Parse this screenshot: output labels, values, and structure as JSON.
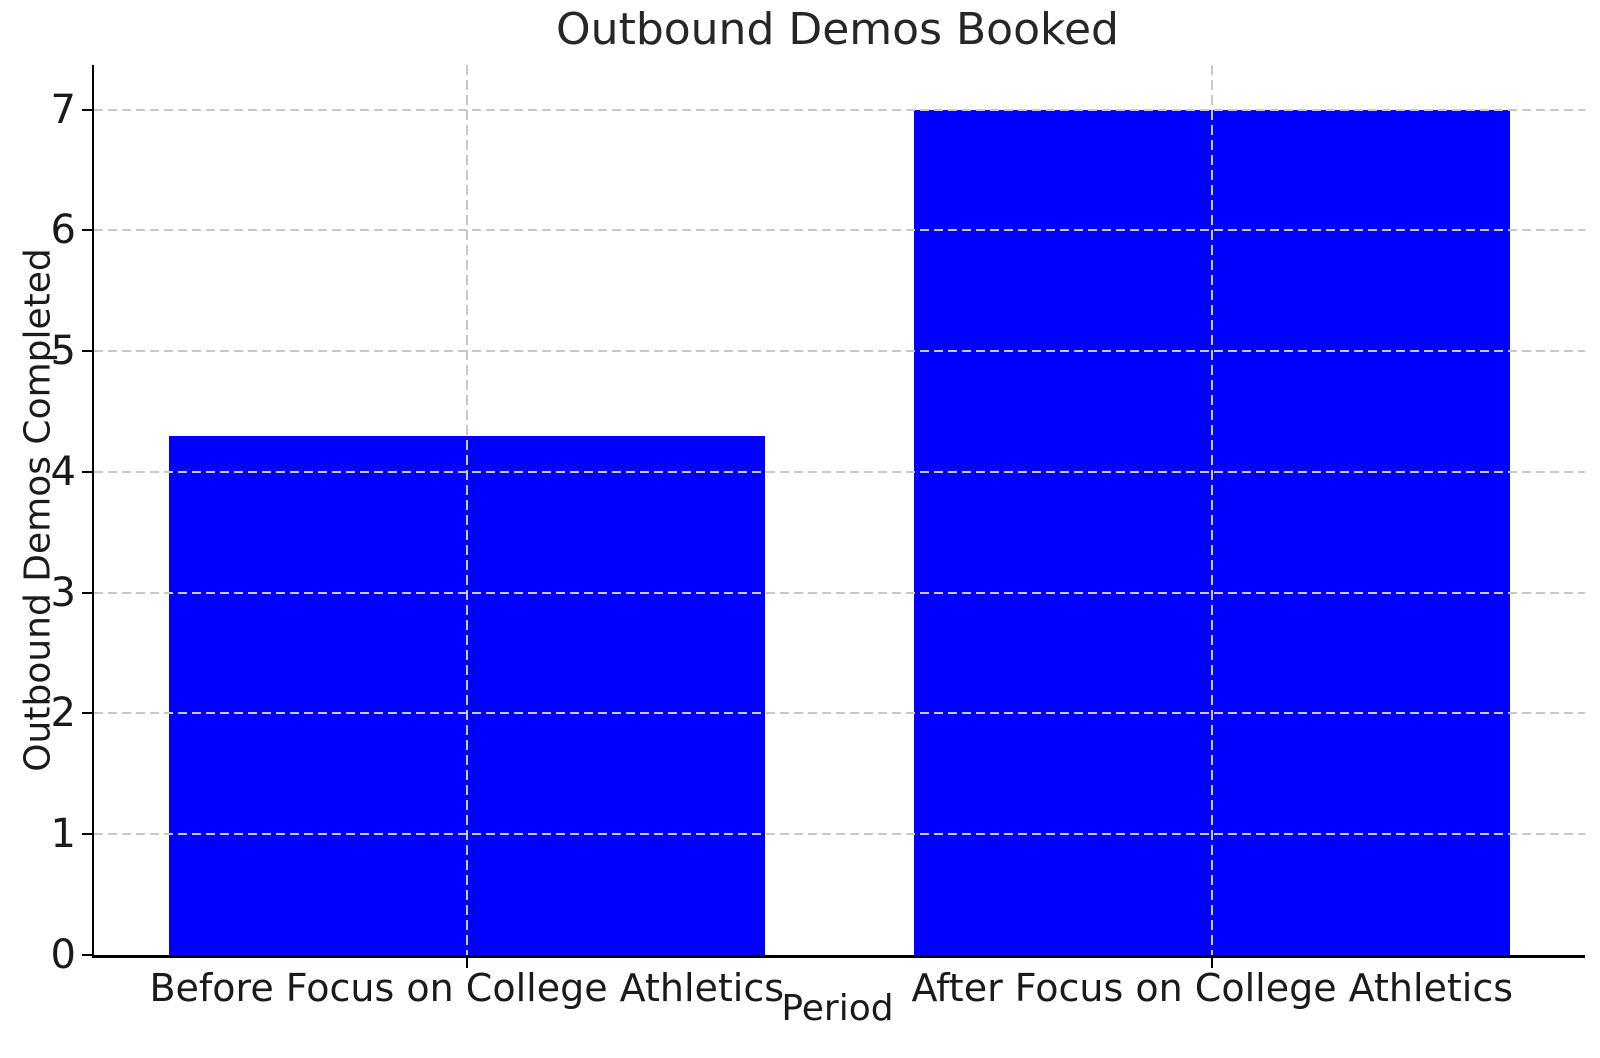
{
  "chart_data": {
    "type": "bar",
    "title": "Outbound Demos Booked",
    "xlabel": "Period",
    "ylabel": "Outbound Demos Completed",
    "categories": [
      "Before Focus on College Athletics",
      "After Focus on College Athletics"
    ],
    "values": [
      4.3,
      7
    ],
    "yticks": [
      0,
      1,
      2,
      3,
      4,
      5,
      6,
      7
    ],
    "ylim": [
      0,
      7.37
    ],
    "bar_color": "#0000ff",
    "grid": "dashed",
    "grid_color": "#c8c8c8",
    "axis_color": "#000000",
    "text_color": "#1a1a1a",
    "legend": "none"
  }
}
